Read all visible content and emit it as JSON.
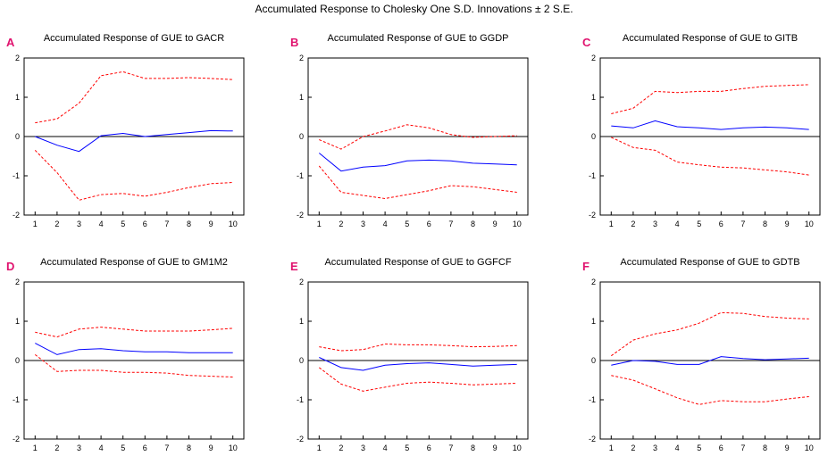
{
  "title": "Accumulated Response to Cholesky One S.D. Innovations ± 2 S.E.",
  "chart_data": [
    {
      "type": "line",
      "letter": "A",
      "title": "Accumulated Response of GUE to GACR",
      "x": [
        1,
        2,
        3,
        4,
        5,
        6,
        7,
        8,
        9,
        10
      ],
      "ylim": [
        -2,
        2
      ],
      "yticks": [
        -2,
        -1,
        0,
        1,
        2
      ],
      "grid": false,
      "zero_line": true,
      "series": [
        {
          "role": "response",
          "color": "#0000ff",
          "dash": "solid",
          "values": [
            0.0,
            -0.22,
            -0.38,
            0.02,
            0.08,
            0.0,
            0.05,
            0.1,
            0.15,
            0.14
          ]
        },
        {
          "role": "upper",
          "color": "#ff0000",
          "dash": "dashed",
          "values": [
            0.35,
            0.45,
            0.85,
            1.55,
            1.65,
            1.48,
            1.48,
            1.5,
            1.48,
            1.45
          ]
        },
        {
          "role": "lower",
          "color": "#ff0000",
          "dash": "dashed",
          "values": [
            -0.35,
            -0.92,
            -1.62,
            -1.48,
            -1.45,
            -1.52,
            -1.42,
            -1.3,
            -1.2,
            -1.17
          ]
        }
      ]
    },
    {
      "type": "line",
      "letter": "B",
      "title": "Accumulated Response of GUE to GGDP",
      "x": [
        1,
        2,
        3,
        4,
        5,
        6,
        7,
        8,
        9,
        10
      ],
      "ylim": [
        -2,
        2
      ],
      "yticks": [
        -2,
        -1,
        0,
        1,
        2
      ],
      "grid": false,
      "zero_line": true,
      "series": [
        {
          "role": "response",
          "color": "#0000ff",
          "dash": "solid",
          "values": [
            -0.42,
            -0.88,
            -0.78,
            -0.74,
            -0.62,
            -0.6,
            -0.62,
            -0.68,
            -0.7,
            -0.72
          ]
        },
        {
          "role": "upper",
          "color": "#ff0000",
          "dash": "dashed",
          "values": [
            -0.08,
            -0.32,
            0.0,
            0.14,
            0.3,
            0.22,
            0.05,
            -0.02,
            0.0,
            0.02
          ]
        },
        {
          "role": "lower",
          "color": "#ff0000",
          "dash": "dashed",
          "values": [
            -0.75,
            -1.42,
            -1.5,
            -1.58,
            -1.48,
            -1.38,
            -1.25,
            -1.28,
            -1.35,
            -1.42
          ]
        }
      ]
    },
    {
      "type": "line",
      "letter": "C",
      "title": "Accumulated Response of GUE to GITB",
      "x": [
        1,
        2,
        3,
        4,
        5,
        6,
        7,
        8,
        9,
        10
      ],
      "ylim": [
        -2,
        2
      ],
      "yticks": [
        -2,
        -1,
        0,
        1,
        2
      ],
      "grid": false,
      "zero_line": true,
      "series": [
        {
          "role": "response",
          "color": "#0000ff",
          "dash": "solid",
          "values": [
            0.27,
            0.22,
            0.4,
            0.25,
            0.22,
            0.18,
            0.22,
            0.24,
            0.22,
            0.18
          ]
        },
        {
          "role": "upper",
          "color": "#ff0000",
          "dash": "dashed",
          "values": [
            0.58,
            0.72,
            1.15,
            1.12,
            1.15,
            1.15,
            1.22,
            1.28,
            1.3,
            1.32
          ]
        },
        {
          "role": "lower",
          "color": "#ff0000",
          "dash": "dashed",
          "values": [
            -0.02,
            -0.28,
            -0.35,
            -0.65,
            -0.72,
            -0.78,
            -0.8,
            -0.85,
            -0.9,
            -0.98
          ]
        }
      ]
    },
    {
      "type": "line",
      "letter": "D",
      "title": "Accumulated Response of GUE to GM1M2",
      "x": [
        1,
        2,
        3,
        4,
        5,
        6,
        7,
        8,
        9,
        10
      ],
      "ylim": [
        -2,
        2
      ],
      "yticks": [
        -2,
        -1,
        0,
        1,
        2
      ],
      "grid": false,
      "zero_line": true,
      "series": [
        {
          "role": "response",
          "color": "#0000ff",
          "dash": "solid",
          "values": [
            0.44,
            0.15,
            0.28,
            0.3,
            0.25,
            0.22,
            0.22,
            0.2,
            0.2,
            0.2
          ]
        },
        {
          "role": "upper",
          "color": "#ff0000",
          "dash": "dashed",
          "values": [
            0.72,
            0.6,
            0.8,
            0.85,
            0.8,
            0.75,
            0.75,
            0.75,
            0.78,
            0.82
          ]
        },
        {
          "role": "lower",
          "color": "#ff0000",
          "dash": "dashed",
          "values": [
            0.15,
            -0.28,
            -0.25,
            -0.25,
            -0.3,
            -0.3,
            -0.32,
            -0.38,
            -0.4,
            -0.42
          ]
        }
      ]
    },
    {
      "type": "line",
      "letter": "E",
      "title": "Accumulated Response of GUE to GGFCF",
      "x": [
        1,
        2,
        3,
        4,
        5,
        6,
        7,
        8,
        9,
        10
      ],
      "ylim": [
        -2,
        2
      ],
      "yticks": [
        -2,
        -1,
        0,
        1,
        2
      ],
      "grid": false,
      "zero_line": true,
      "series": [
        {
          "role": "response",
          "color": "#0000ff",
          "dash": "solid",
          "values": [
            0.08,
            -0.18,
            -0.25,
            -0.12,
            -0.08,
            -0.06,
            -0.1,
            -0.14,
            -0.12,
            -0.1
          ]
        },
        {
          "role": "upper",
          "color": "#ff0000",
          "dash": "dashed",
          "values": [
            0.35,
            0.25,
            0.28,
            0.42,
            0.4,
            0.4,
            0.38,
            0.35,
            0.36,
            0.38
          ]
        },
        {
          "role": "lower",
          "color": "#ff0000",
          "dash": "dashed",
          "values": [
            -0.18,
            -0.6,
            -0.78,
            -0.68,
            -0.58,
            -0.55,
            -0.58,
            -0.62,
            -0.6,
            -0.58
          ]
        }
      ]
    },
    {
      "type": "line",
      "letter": "F",
      "title": "Accumulated Response of GUE to GDTB",
      "x": [
        1,
        2,
        3,
        4,
        5,
        6,
        7,
        8,
        9,
        10
      ],
      "ylim": [
        -2,
        2
      ],
      "yticks": [
        -2,
        -1,
        0,
        1,
        2
      ],
      "grid": false,
      "zero_line": true,
      "series": [
        {
          "role": "response",
          "color": "#0000ff",
          "dash": "solid",
          "values": [
            -0.12,
            0.0,
            -0.02,
            -0.1,
            -0.1,
            0.1,
            0.05,
            0.02,
            0.04,
            0.06
          ]
        },
        {
          "role": "upper",
          "color": "#ff0000",
          "dash": "dashed",
          "values": [
            0.12,
            0.52,
            0.68,
            0.78,
            0.95,
            1.22,
            1.2,
            1.12,
            1.08,
            1.06
          ]
        },
        {
          "role": "lower",
          "color": "#ff0000",
          "dash": "dashed",
          "values": [
            -0.38,
            -0.5,
            -0.72,
            -0.95,
            -1.12,
            -1.02,
            -1.05,
            -1.05,
            -0.98,
            -0.92
          ]
        }
      ]
    }
  ]
}
